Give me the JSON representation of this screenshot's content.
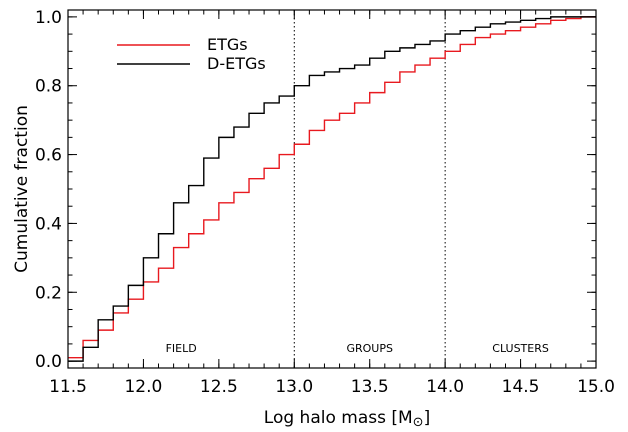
{
  "chart_data": {
    "type": "line",
    "step": true,
    "xlabel": "Log halo mass [M",
    "xlabel_sub": "⊙",
    "xlabel_close": "]",
    "ylabel": "Cumulative fraction",
    "xlim": [
      11.5,
      15.0
    ],
    "ylim": [
      -0.02,
      1.02
    ],
    "xticks": [
      "11.5",
      "12.0",
      "12.5",
      "13.0",
      "13.5",
      "14.0",
      "14.5",
      "15.0"
    ],
    "yticks": [
      "0.0",
      "0.2",
      "0.4",
      "0.6",
      "0.8",
      "1.0"
    ],
    "legend_position": "top-left",
    "vlines": [
      13.0,
      14.0
    ],
    "regions": [
      {
        "label": "FIELD",
        "x": 12.25
      },
      {
        "label": "GROUPS",
        "x": 13.5
      },
      {
        "label": "CLUSTERS",
        "x": 14.5
      }
    ],
    "series": [
      {
        "name": "ETGs",
        "color": "#e8191f",
        "x": [
          11.5,
          11.6,
          11.7,
          11.8,
          11.9,
          12.0,
          12.1,
          12.2,
          12.3,
          12.4,
          12.5,
          12.6,
          12.7,
          12.8,
          12.9,
          13.0,
          13.1,
          13.2,
          13.3,
          13.4,
          13.5,
          13.6,
          13.7,
          13.8,
          13.9,
          14.0,
          14.1,
          14.2,
          14.3,
          14.4,
          14.5,
          14.6,
          14.7,
          14.8,
          14.9,
          15.0
        ],
        "values": [
          0.01,
          0.06,
          0.09,
          0.14,
          0.18,
          0.23,
          0.27,
          0.33,
          0.37,
          0.41,
          0.46,
          0.49,
          0.53,
          0.56,
          0.6,
          0.63,
          0.67,
          0.7,
          0.72,
          0.75,
          0.78,
          0.81,
          0.84,
          0.86,
          0.88,
          0.9,
          0.92,
          0.94,
          0.95,
          0.96,
          0.97,
          0.98,
          0.99,
          0.995,
          1.0,
          1.0
        ]
      },
      {
        "name": "D-ETGs",
        "color": "#000000",
        "x": [
          11.5,
          11.6,
          11.7,
          11.8,
          11.9,
          12.0,
          12.1,
          12.2,
          12.3,
          12.4,
          12.5,
          12.6,
          12.7,
          12.8,
          12.9,
          13.0,
          13.1,
          13.2,
          13.3,
          13.4,
          13.5,
          13.6,
          13.7,
          13.8,
          13.9,
          14.0,
          14.1,
          14.2,
          14.3,
          14.4,
          14.5,
          14.6,
          14.7,
          14.8,
          14.9,
          15.0
        ],
        "values": [
          0.0,
          0.04,
          0.12,
          0.16,
          0.22,
          0.3,
          0.37,
          0.46,
          0.51,
          0.59,
          0.65,
          0.68,
          0.72,
          0.75,
          0.77,
          0.8,
          0.83,
          0.84,
          0.85,
          0.86,
          0.88,
          0.9,
          0.91,
          0.92,
          0.93,
          0.95,
          0.96,
          0.97,
          0.98,
          0.985,
          0.99,
          0.995,
          1.0,
          1.0,
          1.0,
          1.0
        ]
      }
    ]
  }
}
